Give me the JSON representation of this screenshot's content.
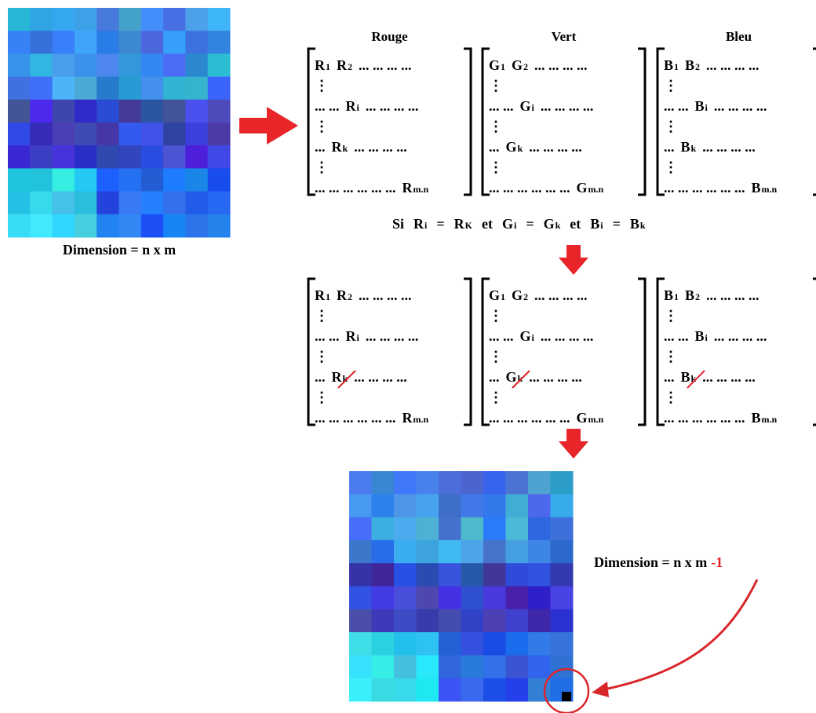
{
  "matrices": [
    {
      "title": "Rouge",
      "rows": [
        [
          {
            "t": "R",
            "sub": "1"
          },
          {
            "t": "R",
            "sub": "2"
          },
          {
            "t": "... ... ... ..."
          }
        ],
        [
          {
            "t": "⋮"
          }
        ],
        [
          {
            "t": "... ..."
          },
          {
            "t": "R",
            "sub": "i"
          },
          {
            "t": "... ... ... ..."
          }
        ],
        [
          {
            "t": "⋮"
          }
        ],
        [
          {
            "t": "..."
          },
          {
            "t": "R",
            "sub": "k"
          },
          {
            "t": "... ... ... ..."
          }
        ],
        [
          {
            "t": "⋮"
          }
        ],
        [
          {
            "t": "... ... ... ... ... ..."
          },
          {
            "t": "R",
            "sub": "m.n"
          }
        ]
      ]
    },
    {
      "title": "Vert",
      "rows": [
        [
          {
            "t": "G",
            "sub": "1"
          },
          {
            "t": "G",
            "sub": "2"
          },
          {
            "t": "... ... ... ..."
          }
        ],
        [
          {
            "t": "⋮"
          }
        ],
        [
          {
            "t": "... ..."
          },
          {
            "t": "G",
            "sub": "i"
          },
          {
            "t": "... ... ... ..."
          }
        ],
        [
          {
            "t": "⋮"
          }
        ],
        [
          {
            "t": "..."
          },
          {
            "t": "G",
            "sub": "k"
          },
          {
            "t": "... ... ... ..."
          }
        ],
        [
          {
            "t": "⋮"
          }
        ],
        [
          {
            "t": "... ... ... ... ... ..."
          },
          {
            "t": "G",
            "sub": "m.n"
          }
        ]
      ]
    },
    {
      "title": "Bleu",
      "rows": [
        [
          {
            "t": "B",
            "sub": "1"
          },
          {
            "t": "B",
            "sub": "2"
          },
          {
            "t": "... ... ... ..."
          }
        ],
        [
          {
            "t": "⋮"
          }
        ],
        [
          {
            "t": "... ..."
          },
          {
            "t": "B",
            "sub": "i"
          },
          {
            "t": "... ... ... ..."
          }
        ],
        [
          {
            "t": "⋮"
          }
        ],
        [
          {
            "t": "..."
          },
          {
            "t": "B",
            "sub": "k"
          },
          {
            "t": "... ... ... ..."
          }
        ],
        [
          {
            "t": "⋮"
          }
        ],
        [
          {
            "t": "... ... ... ... ... ..."
          },
          {
            "t": "B",
            "sub": "m.n"
          }
        ]
      ]
    }
  ],
  "condition": [
    {
      "t": "Si"
    },
    {
      "t": "R",
      "sub": "i"
    },
    {
      "t": "="
    },
    {
      "t": "R",
      "sub": "K"
    },
    {
      "t": "et"
    },
    {
      "t": "G",
      "sub": "i"
    },
    {
      "t": "="
    },
    {
      "t": "G",
      "sub": "k"
    },
    {
      "t": "et"
    },
    {
      "t": "B",
      "sub": "i"
    },
    {
      "t": "="
    },
    {
      "t": "B",
      "sub": "k"
    }
  ],
  "caption_before": "Dimension = n x m",
  "caption_after": {
    "text": "Dimension = n x m",
    "suffix": "-1"
  }
}
